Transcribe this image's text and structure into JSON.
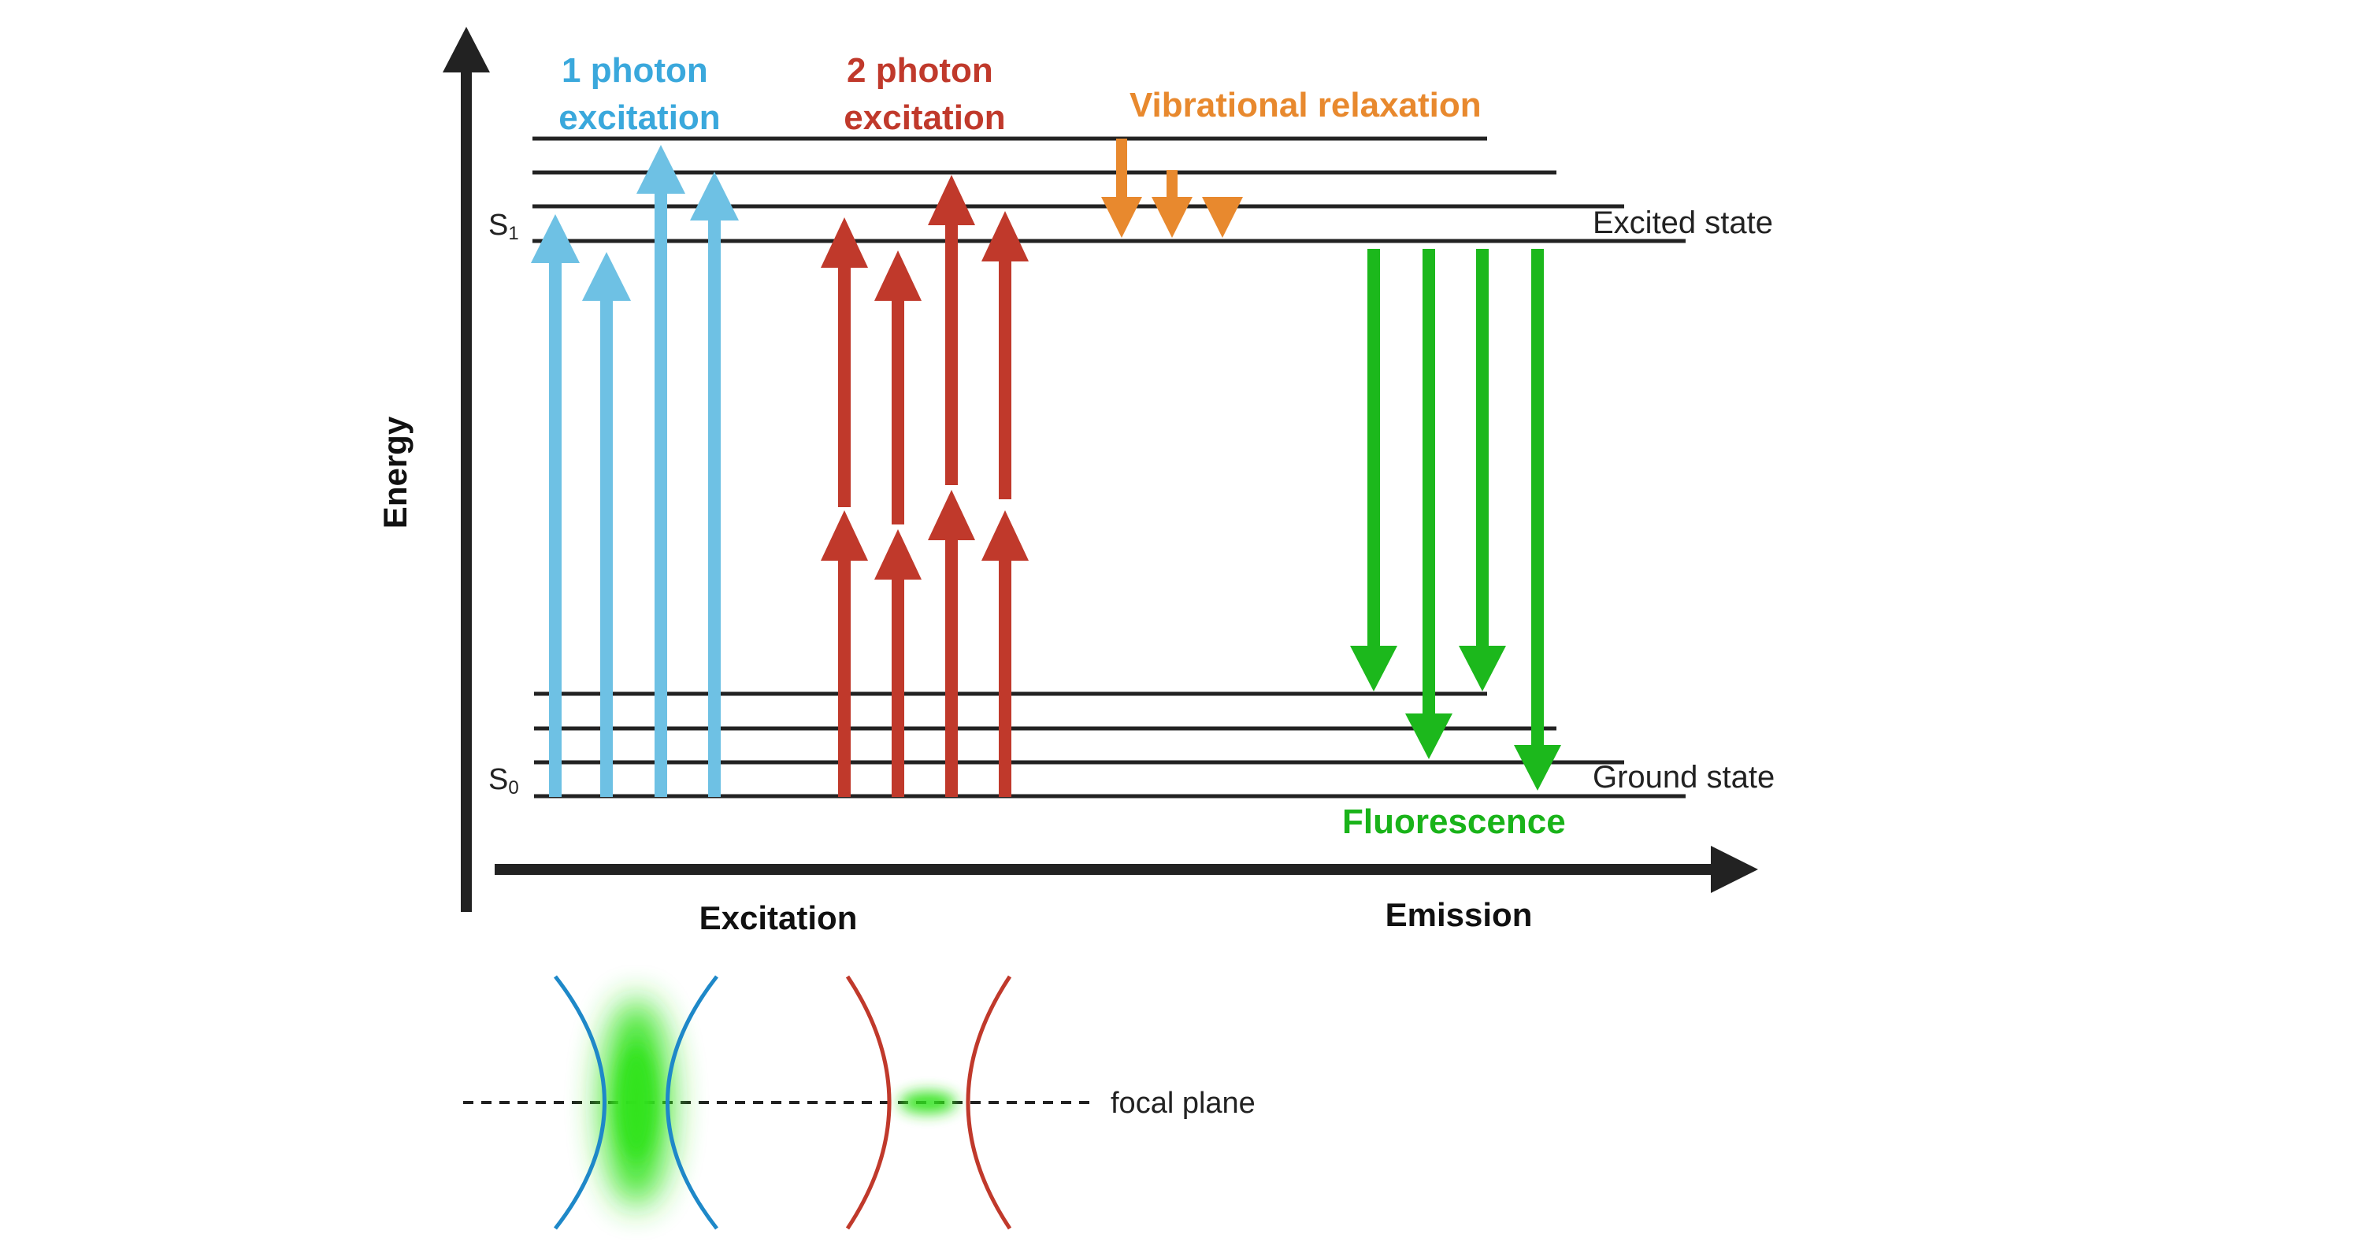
{
  "axes": {
    "y_label": "Energy",
    "x_label_left": "Excitation",
    "x_label_right": "Emission"
  },
  "levels": {
    "s1_label": "S",
    "s1_sub": "1",
    "s0_label": "S",
    "s0_sub": "0",
    "excited_label": "Excited state",
    "ground_label": "Ground state"
  },
  "processes": {
    "one_photon_line1": "1 photon",
    "one_photon_line2": "excitation",
    "two_photon_line1": "2 photon",
    "two_photon_line2": "excitation",
    "vibrational": "Vibrational relaxation",
    "fluorescence": "Fluorescence"
  },
  "focus": {
    "focal_plane_label": "focal plane"
  },
  "colors": {
    "axis": "#222222",
    "level_line": "#222222",
    "one_photon": "#6ec1e4",
    "one_photon_title": "#3aa8dc",
    "two_photon": "#c0392b",
    "two_photon_title": "#c0392b",
    "vibrational": "#e8892e",
    "fluorescence": "#1cb81c",
    "fluorescence_title": "#19b319",
    "beam_blue": "#1e88c8",
    "beam_red": "#c0392b",
    "glow": "#33e31a"
  }
}
